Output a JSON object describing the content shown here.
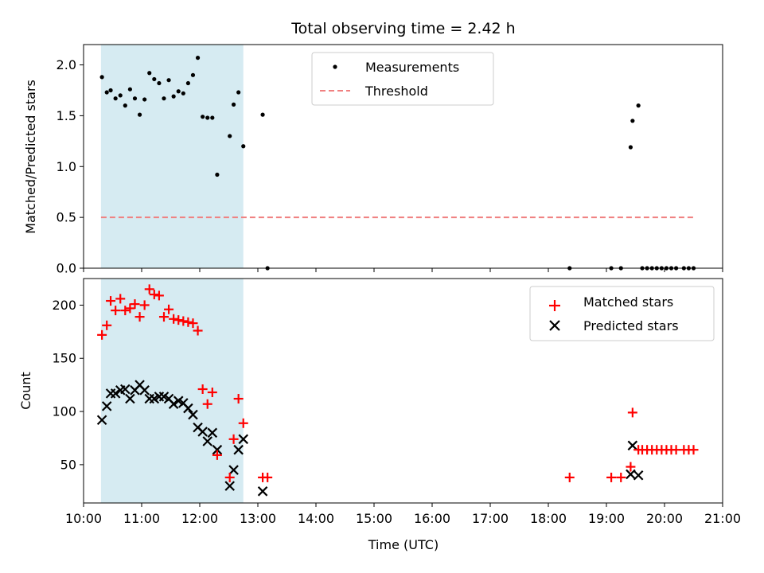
{
  "chart_data": [
    {
      "type": "scatter",
      "title": "Total observing time = 2.42 h",
      "xlabel": "",
      "ylabel": "Matched/Predicted stars",
      "xlim": [
        "10:00",
        "21:00"
      ],
      "ylim": [
        0,
        2.2
      ],
      "yticks": [
        "0.0",
        "0.5",
        "1.0",
        "1.5",
        "2.0"
      ],
      "shaded_span": [
        "10:18",
        "12:45"
      ],
      "legend": {
        "position": "top-center",
        "entries": [
          "Measurements",
          "Threshold"
        ]
      },
      "series": [
        {
          "name": "Measurements",
          "color": "#000000",
          "marker": "dot",
          "points": [
            [
              "10:19",
              1.88
            ],
            [
              "10:24",
              1.73
            ],
            [
              "10:28",
              1.75
            ],
            [
              "10:33",
              1.67
            ],
            [
              "10:38",
              1.7
            ],
            [
              "10:43",
              1.6
            ],
            [
              "10:48",
              1.76
            ],
            [
              "10:53",
              1.67
            ],
            [
              "10:58",
              1.51
            ],
            [
              "11:03",
              1.66
            ],
            [
              "11:08",
              1.92
            ],
            [
              "11:13",
              1.86
            ],
            [
              "11:18",
              1.82
            ],
            [
              "11:23",
              1.67
            ],
            [
              "11:28",
              1.85
            ],
            [
              "11:33",
              1.69
            ],
            [
              "11:38",
              1.74
            ],
            [
              "11:43",
              1.72
            ],
            [
              "11:48",
              1.82
            ],
            [
              "11:53",
              1.9
            ],
            [
              "11:58",
              2.07
            ],
            [
              "12:03",
              1.49
            ],
            [
              "12:08",
              1.48
            ],
            [
              "12:13",
              1.48
            ],
            [
              "12:18",
              0.92
            ],
            [
              "12:31",
              1.3
            ],
            [
              "12:35",
              1.61
            ],
            [
              "12:40",
              1.73
            ],
            [
              "12:45",
              1.2
            ],
            [
              "13:05",
              1.51
            ],
            [
              "13:10",
              0.0
            ],
            [
              "18:22",
              0.0
            ],
            [
              "19:05",
              0.0
            ],
            [
              "19:15",
              0.0
            ],
            [
              "19:25",
              1.19
            ],
            [
              "19:27",
              1.45
            ],
            [
              "19:33",
              1.6
            ],
            [
              "19:37",
              0.0
            ],
            [
              "19:42",
              0.0
            ],
            [
              "19:47",
              0.0
            ],
            [
              "19:52",
              0.0
            ],
            [
              "19:57",
              0.0
            ],
            [
              "20:02",
              0.0
            ],
            [
              "20:07",
              0.0
            ],
            [
              "20:12",
              0.0
            ],
            [
              "20:20",
              0.0
            ],
            [
              "20:25",
              0.0
            ],
            [
              "20:30",
              0.0
            ]
          ]
        },
        {
          "name": "Threshold",
          "color": "#f08080",
          "style": "dashed",
          "points": [
            [
              "10:18",
              0.5
            ],
            [
              "20:30",
              0.5
            ]
          ]
        }
      ]
    },
    {
      "type": "scatter",
      "title": "",
      "xlabel": "Time (UTC)",
      "ylabel": "Count",
      "xlim": [
        "10:00",
        "21:00"
      ],
      "ylim": [
        14,
        225
      ],
      "xticks": [
        "10:00",
        "11:00",
        "12:00",
        "13:00",
        "14:00",
        "15:00",
        "16:00",
        "17:00",
        "18:00",
        "19:00",
        "20:00",
        "21:00"
      ],
      "yticks": [
        "50",
        "100",
        "150",
        "200"
      ],
      "shaded_span": [
        "10:18",
        "12:45"
      ],
      "legend": {
        "position": "top-right",
        "entries": [
          "Matched stars",
          "Predicted stars"
        ]
      },
      "series": [
        {
          "name": "Matched stars",
          "color": "#ff0000",
          "marker": "plus",
          "points": [
            [
              "10:19",
              172
            ],
            [
              "10:24",
              181
            ],
            [
              "10:28",
              204
            ],
            [
              "10:33",
              195
            ],
            [
              "10:38",
              206
            ],
            [
              "10:43",
              195
            ],
            [
              "10:48",
              197
            ],
            [
              "10:53",
              201
            ],
            [
              "10:58",
              189
            ],
            [
              "11:03",
              200
            ],
            [
              "11:08",
              215
            ],
            [
              "11:13",
              210
            ],
            [
              "11:18",
              209
            ],
            [
              "11:23",
              189
            ],
            [
              "11:28",
              196
            ],
            [
              "11:33",
              187
            ],
            [
              "11:38",
              186
            ],
            [
              "11:43",
              185
            ],
            [
              "11:48",
              184
            ],
            [
              "11:53",
              183
            ],
            [
              "11:58",
              176
            ],
            [
              "12:03",
              121
            ],
            [
              "12:08",
              107
            ],
            [
              "12:13",
              118
            ],
            [
              "12:18",
              59
            ],
            [
              "12:31",
              38
            ],
            [
              "12:35",
              74
            ],
            [
              "12:40",
              112
            ],
            [
              "12:45",
              89
            ],
            [
              "13:05",
              38
            ],
            [
              "13:10",
              38
            ],
            [
              "18:22",
              38
            ],
            [
              "19:05",
              38
            ],
            [
              "19:15",
              38
            ],
            [
              "19:25",
              48
            ],
            [
              "19:27",
              99
            ],
            [
              "19:33",
              64
            ],
            [
              "19:37",
              64
            ],
            [
              "19:42",
              64
            ],
            [
              "19:47",
              64
            ],
            [
              "19:52",
              64
            ],
            [
              "19:57",
              64
            ],
            [
              "20:02",
              64
            ],
            [
              "20:07",
              64
            ],
            [
              "20:12",
              64
            ],
            [
              "20:20",
              64
            ],
            [
              "20:25",
              64
            ],
            [
              "20:30",
              64
            ]
          ]
        },
        {
          "name": "Predicted stars",
          "color": "#000000",
          "marker": "x",
          "points": [
            [
              "10:19",
              92
            ],
            [
              "10:24",
              105
            ],
            [
              "10:28",
              117
            ],
            [
              "10:33",
              117
            ],
            [
              "10:38",
              120
            ],
            [
              "10:43",
              121
            ],
            [
              "10:48",
              112
            ],
            [
              "10:53",
              120
            ],
            [
              "10:58",
              125
            ],
            [
              "11:03",
              120
            ],
            [
              "11:08",
              112
            ],
            [
              "11:13",
              112
            ],
            [
              "11:18",
              114
            ],
            [
              "11:23",
              114
            ],
            [
              "11:28",
              112
            ],
            [
              "11:33",
              107
            ],
            [
              "11:38",
              110
            ],
            [
              "11:43",
              108
            ],
            [
              "11:48",
              103
            ],
            [
              "11:53",
              97
            ],
            [
              "11:58",
              85
            ],
            [
              "12:03",
              81
            ],
            [
              "12:08",
              72
            ],
            [
              "12:13",
              80
            ],
            [
              "12:18",
              64
            ],
            [
              "12:31",
              30
            ],
            [
              "12:35",
              45
            ],
            [
              "12:40",
              64
            ],
            [
              "12:45",
              74
            ],
            [
              "13:05",
              25
            ],
            [
              "19:25",
              41
            ],
            [
              "19:27",
              68
            ],
            [
              "19:33",
              40
            ]
          ]
        }
      ]
    }
  ]
}
